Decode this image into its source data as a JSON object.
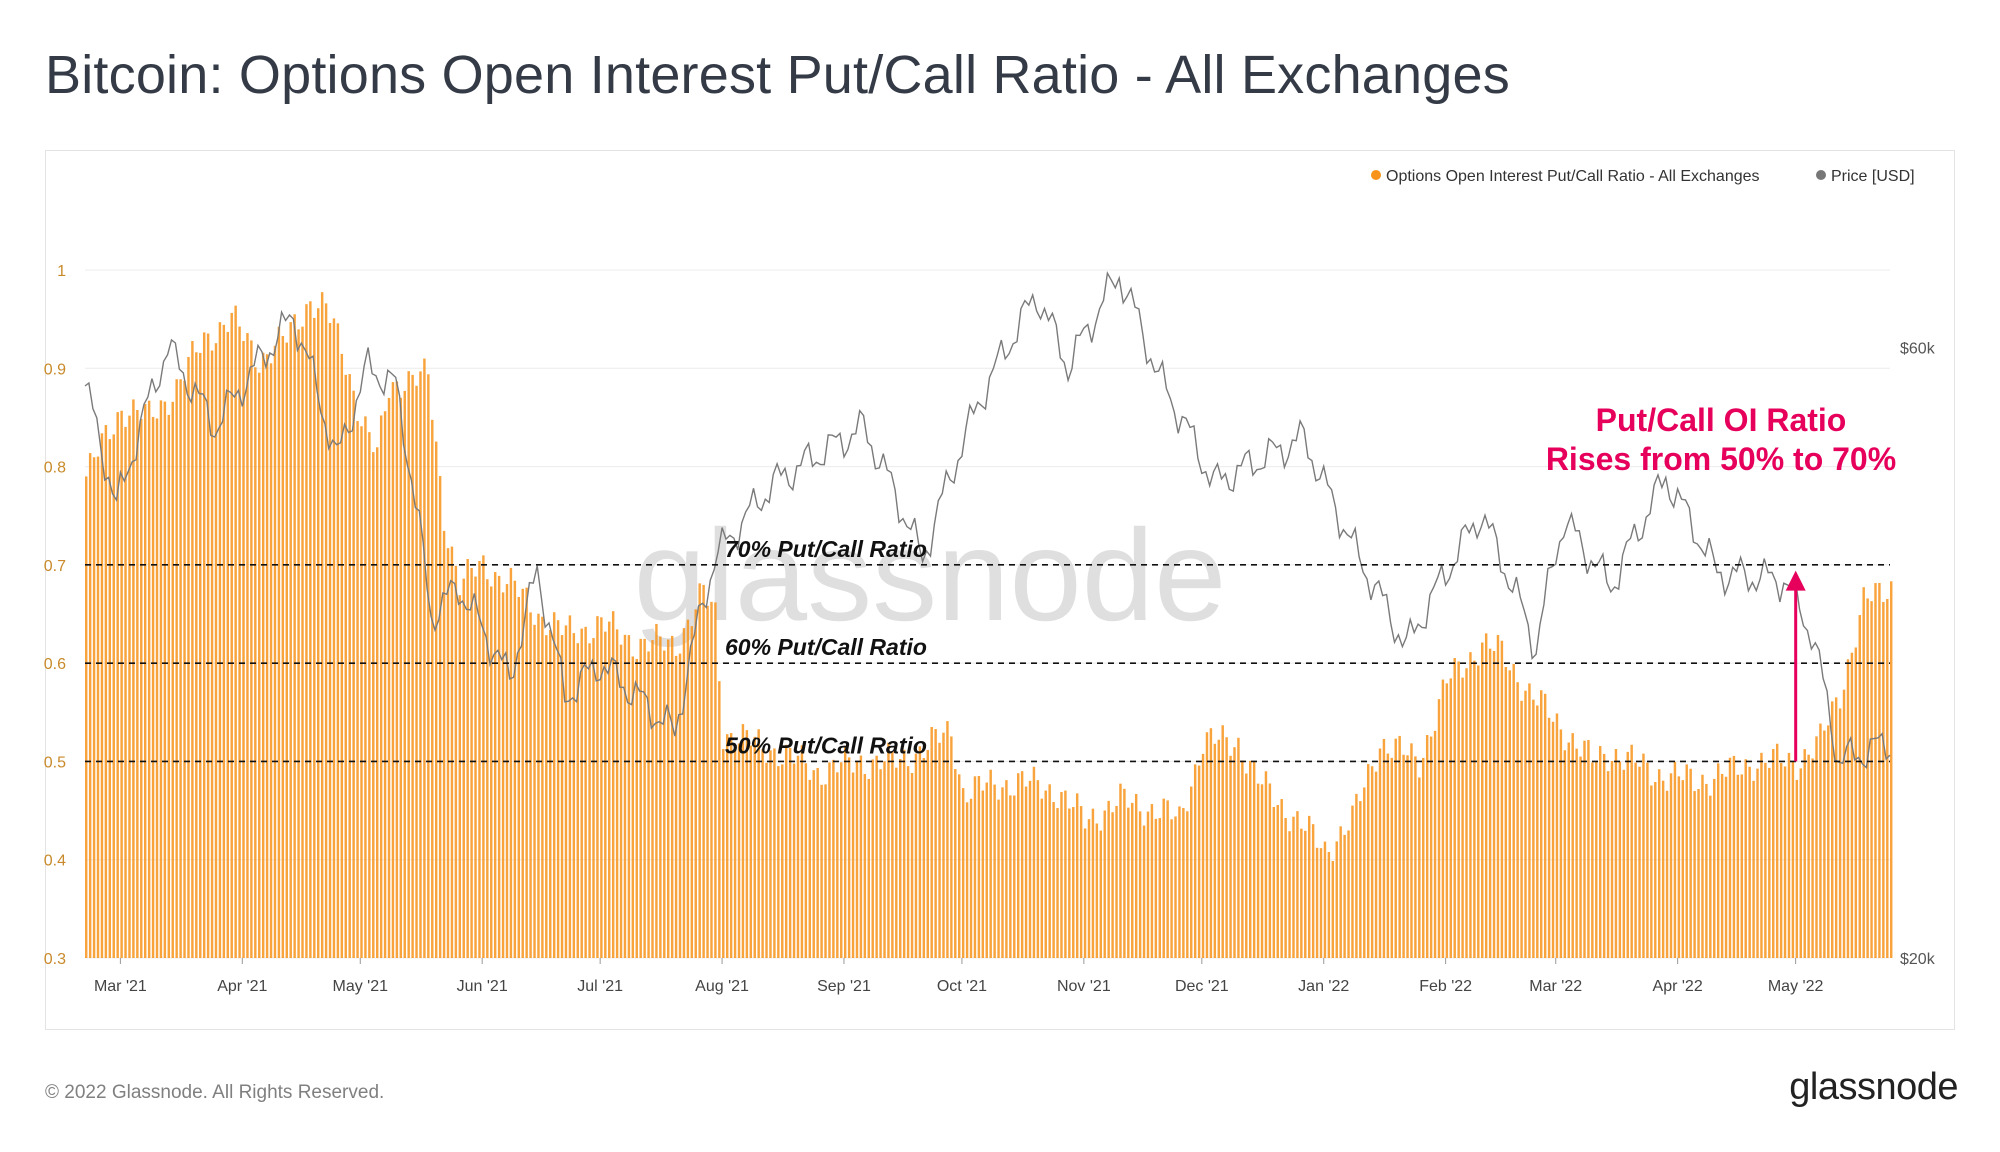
{
  "title": "Bitcoin: Options Open Interest Put/Call Ratio - All Exchanges",
  "footer": {
    "copyright": "© 2022 Glassnode. All Rights Reserved.",
    "logo": "glassnode"
  },
  "watermark": "glassnode",
  "colors": {
    "bar": "#f7931a",
    "price": "#888888",
    "annotation": "#e6005c",
    "grid": "#ececec",
    "axis_text": "#c88a2a",
    "text": "#343b46"
  },
  "chart_data": {
    "type": "bar",
    "title": "Bitcoin: Options Open Interest Put/Call Ratio - All Exchanges",
    "legend": {
      "placement": "top-right",
      "entries": [
        {
          "name": "Options Open Interest Put/Call Ratio - All Exchanges",
          "color": "#f7931a"
        },
        {
          "name": "Price [USD]",
          "color": "#777777"
        }
      ]
    },
    "x_axis": {
      "start": "2021-02-20",
      "end": "2022-05-25",
      "ticks": [
        "Mar '21",
        "Apr '21",
        "May '21",
        "Jun '21",
        "Jul '21",
        "Aug '21",
        "Sep '21",
        "Oct '21",
        "Nov '21",
        "Dec '21",
        "Jan '22",
        "Feb '22",
        "Mar '22",
        "Apr '22",
        "May '22"
      ],
      "tick_dates": [
        "2021-03-01",
        "2021-04-01",
        "2021-05-01",
        "2021-06-01",
        "2021-07-01",
        "2021-08-01",
        "2021-09-01",
        "2021-10-01",
        "2021-11-01",
        "2021-12-01",
        "2022-01-01",
        "2022-02-01",
        "2022-03-01",
        "2022-04-01",
        "2022-05-01"
      ]
    },
    "y_left": {
      "ylim": [
        0.3,
        1.0
      ],
      "ticks": [
        "1",
        "0.9",
        "0.8",
        "0.7",
        "0.6",
        "0.5",
        "0.4",
        "0.3"
      ],
      "tick_values": [
        1,
        0.9,
        0.8,
        0.7,
        0.6,
        0.5,
        0.4,
        0.3
      ]
    },
    "y_right": {
      "scale": "log",
      "ylim": [
        20000,
        69000
      ],
      "ticks": [
        "$60k",
        "$20k"
      ],
      "tick_values": [
        60000,
        20000
      ]
    },
    "series": [
      {
        "name": "Options Open Interest Put/Call Ratio - All Exchanges",
        "kind": "bar",
        "points": [
          [
            "2021-02-20",
            0.79
          ],
          [
            "2021-03-01",
            0.86
          ],
          [
            "2021-03-08",
            0.85
          ],
          [
            "2021-03-15",
            0.88
          ],
          [
            "2021-03-22",
            0.93
          ],
          [
            "2021-03-29",
            0.95
          ],
          [
            "2021-04-05",
            0.91
          ],
          [
            "2021-04-12",
            0.93
          ],
          [
            "2021-04-18",
            0.97
          ],
          [
            "2021-04-22",
            0.96
          ],
          [
            "2021-04-26",
            0.92
          ],
          [
            "2021-05-01",
            0.85
          ],
          [
            "2021-05-05",
            0.81
          ],
          [
            "2021-05-08",
            0.88
          ],
          [
            "2021-05-12",
            0.89
          ],
          [
            "2021-05-18",
            0.89
          ],
          [
            "2021-05-22",
            0.75
          ],
          [
            "2021-05-26",
            0.68
          ],
          [
            "2021-06-01",
            0.7
          ],
          [
            "2021-06-08",
            0.68
          ],
          [
            "2021-06-15",
            0.65
          ],
          [
            "2021-06-22",
            0.63
          ],
          [
            "2021-07-01",
            0.64
          ],
          [
            "2021-07-10",
            0.62
          ],
          [
            "2021-07-20",
            0.62
          ],
          [
            "2021-07-27",
            0.67
          ],
          [
            "2021-07-30",
            0.65
          ],
          [
            "2021-08-01",
            0.53
          ],
          [
            "2021-08-15",
            0.51
          ],
          [
            "2021-08-25",
            0.49
          ],
          [
            "2021-09-05",
            0.5
          ],
          [
            "2021-09-15",
            0.5
          ],
          [
            "2021-09-28",
            0.53
          ],
          [
            "2021-10-01",
            0.47
          ],
          [
            "2021-10-15",
            0.48
          ],
          [
            "2021-10-25",
            0.47
          ],
          [
            "2021-11-01",
            0.44
          ],
          [
            "2021-11-10",
            0.46
          ],
          [
            "2021-11-20",
            0.45
          ],
          [
            "2021-11-25",
            0.44
          ],
          [
            "2021-12-01",
            0.52
          ],
          [
            "2021-12-10",
            0.52
          ],
          [
            "2021-12-15",
            0.48
          ],
          [
            "2021-12-25",
            0.44
          ],
          [
            "2022-01-01",
            0.41
          ],
          [
            "2022-01-08",
            0.44
          ],
          [
            "2022-01-15",
            0.52
          ],
          [
            "2022-01-25",
            0.5
          ],
          [
            "2022-02-01",
            0.58
          ],
          [
            "2022-02-10",
            0.62
          ],
          [
            "2022-02-15",
            0.61
          ],
          [
            "2022-02-22",
            0.57
          ],
          [
            "2022-03-01",
            0.54
          ],
          [
            "2022-03-10",
            0.5
          ],
          [
            "2022-03-15",
            0.51
          ],
          [
            "2022-03-25",
            0.49
          ],
          [
            "2022-04-05",
            0.48
          ],
          [
            "2022-04-15",
            0.49
          ],
          [
            "2022-04-20",
            0.5
          ],
          [
            "2022-05-01",
            0.5
          ],
          [
            "2022-05-07",
            0.52
          ],
          [
            "2022-05-12",
            0.57
          ],
          [
            "2022-05-18",
            0.66
          ],
          [
            "2022-05-25",
            0.68
          ]
        ]
      },
      {
        "name": "Price [USD]",
        "kind": "line",
        "points": [
          [
            "2021-02-20",
            56000
          ],
          [
            "2021-02-28",
            45000
          ],
          [
            "2021-03-13",
            60000
          ],
          [
            "2021-03-25",
            52000
          ],
          [
            "2021-04-14",
            63500
          ],
          [
            "2021-04-25",
            49000
          ],
          [
            "2021-05-03",
            58000
          ],
          [
            "2021-05-10",
            56000
          ],
          [
            "2021-05-19",
            37000
          ],
          [
            "2021-05-26",
            39000
          ],
          [
            "2021-06-08",
            33000
          ],
          [
            "2021-06-15",
            40000
          ],
          [
            "2021-06-22",
            32000
          ],
          [
            "2021-07-01",
            34000
          ],
          [
            "2021-07-20",
            30000
          ],
          [
            "2021-07-30",
            41000
          ],
          [
            "2021-08-14",
            47000
          ],
          [
            "2021-09-06",
            52000
          ],
          [
            "2021-09-21",
            41000
          ],
          [
            "2021-10-06",
            55000
          ],
          [
            "2021-10-20",
            66000
          ],
          [
            "2021-10-28",
            58000
          ],
          [
            "2021-11-10",
            68500
          ],
          [
            "2021-11-20",
            57000
          ],
          [
            "2021-12-04",
            47000
          ],
          [
            "2021-12-27",
            51000
          ],
          [
            "2022-01-01",
            47000
          ],
          [
            "2022-01-10",
            41000
          ],
          [
            "2022-01-22",
            35000
          ],
          [
            "2022-02-10",
            44500
          ],
          [
            "2022-02-24",
            35000
          ],
          [
            "2022-03-03",
            44000
          ],
          [
            "2022-03-15",
            39000
          ],
          [
            "2022-03-29",
            47500
          ],
          [
            "2022-04-11",
            40000
          ],
          [
            "2022-04-28",
            39500
          ],
          [
            "2022-05-05",
            36000
          ],
          [
            "2022-05-12",
            28500
          ],
          [
            "2022-05-25",
            29500
          ]
        ]
      }
    ],
    "reference_lines": [
      {
        "value": 0.7,
        "label": "70% Put/Call Ratio"
      },
      {
        "value": 0.6,
        "label": "60% Put/Call Ratio"
      },
      {
        "value": 0.5,
        "label": "50% Put/Call Ratio"
      }
    ],
    "annotation": {
      "lines": [
        "Put/Call OI Ratio",
        "Rises from 50% to 70%"
      ],
      "arrow_date": "2022-04-30",
      "from": 0.5,
      "to": 0.69
    }
  }
}
